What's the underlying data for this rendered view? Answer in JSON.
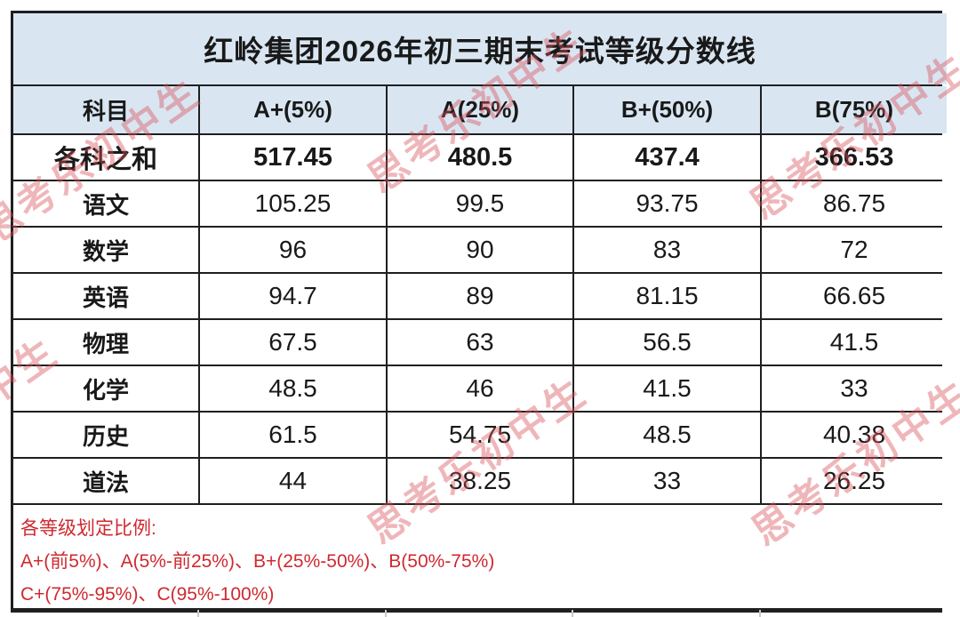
{
  "title": "红岭集团2026年初三期末考试等级分数线",
  "table": {
    "columns": [
      "科目",
      "A+(5%)",
      "A(25%)",
      "B+(50%)",
      "B(75%)"
    ],
    "rows": [
      {
        "subject": "各科之和",
        "values": [
          "517.45",
          "480.5",
          "437.4",
          "366.53"
        ]
      },
      {
        "subject": "语文",
        "values": [
          "105.25",
          "99.5",
          "93.75",
          "86.75"
        ]
      },
      {
        "subject": "数学",
        "values": [
          "96",
          "90",
          "83",
          "72"
        ]
      },
      {
        "subject": "英语",
        "values": [
          "94.7",
          "89",
          "81.15",
          "66.65"
        ]
      },
      {
        "subject": "物理",
        "values": [
          "67.5",
          "63",
          "56.5",
          "41.5"
        ]
      },
      {
        "subject": "化学",
        "values": [
          "48.5",
          "46",
          "41.5",
          "33"
        ]
      },
      {
        "subject": "历史",
        "values": [
          "61.5",
          "54.75",
          "48.5",
          "40.38"
        ]
      },
      {
        "subject": "道法",
        "values": [
          "44",
          "38.25",
          "33",
          "26.25"
        ]
      }
    ]
  },
  "note": {
    "line1": "各等级划定比例:",
    "line2": "A+(前5%)、A(5%-前25%)、B+(25%-50%)、B(50%-75%)",
    "line3": "C+(75%-95%)、C(95%-100%)"
  },
  "watermark": {
    "text": "思考乐初中生",
    "color": "#d8525a"
  },
  "colors": {
    "header_bg": "#d9e6f2",
    "border": "#1f1f1f",
    "note_text": "#ce2a30"
  }
}
